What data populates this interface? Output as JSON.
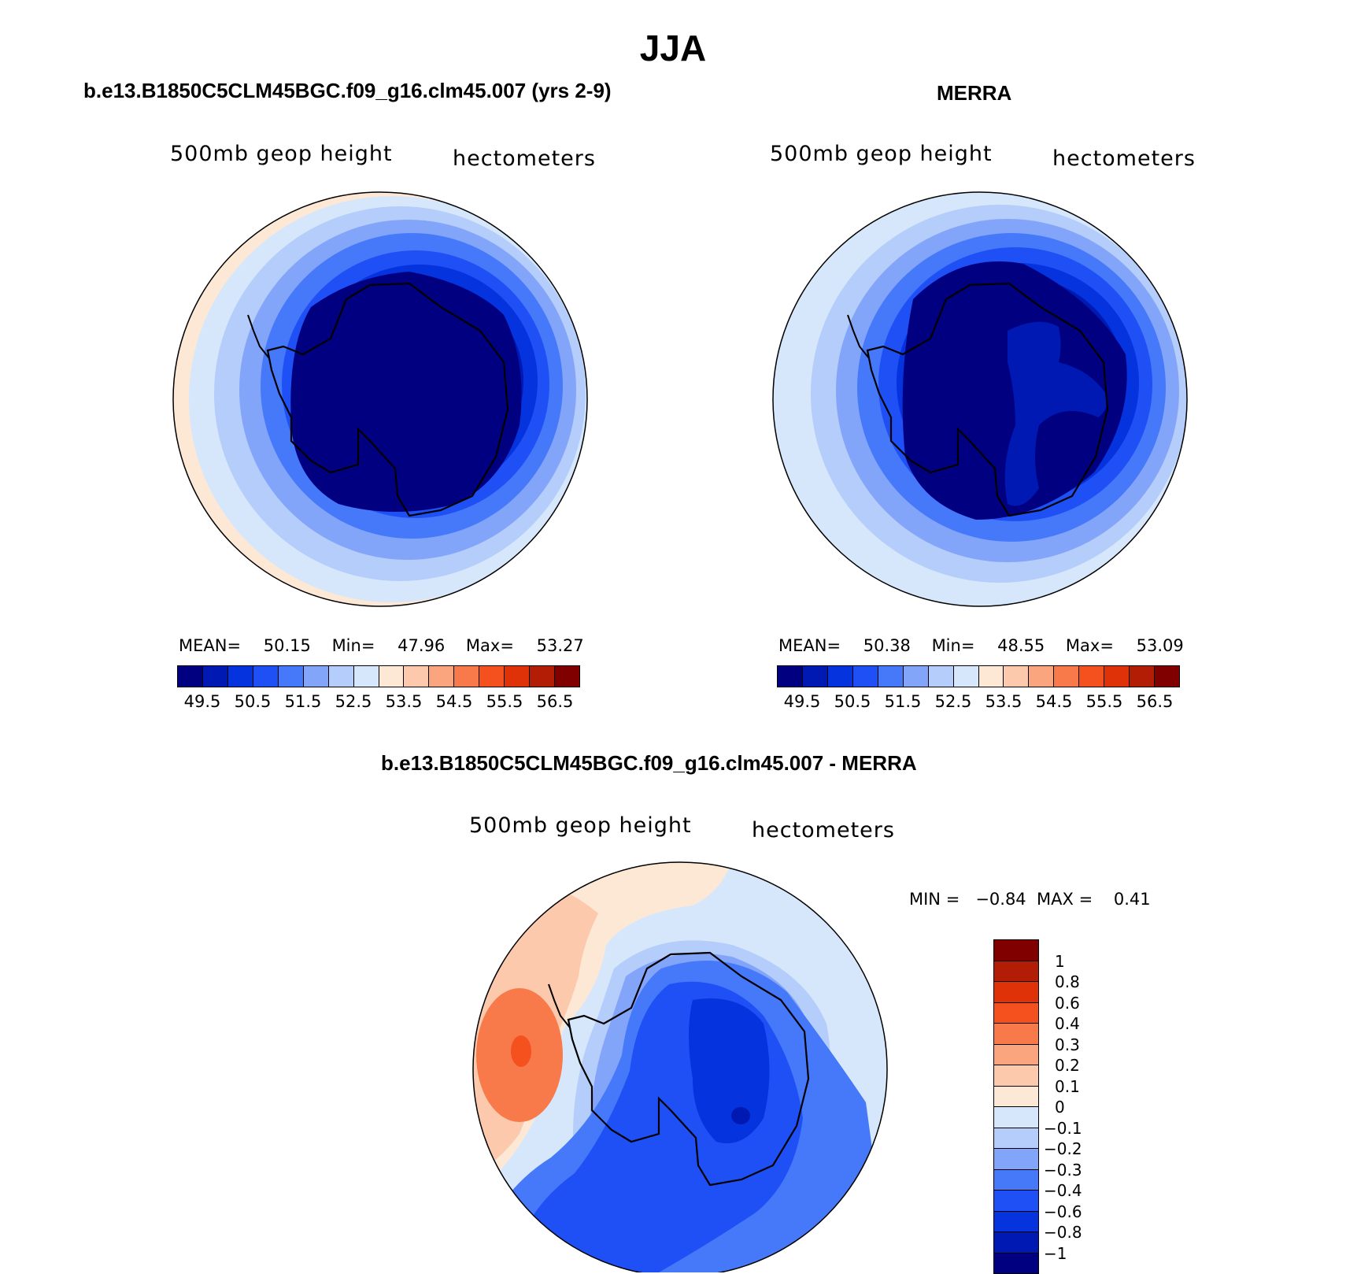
{
  "figure": {
    "title": "JJA"
  },
  "panels": {
    "model": {
      "title": "b.e13.B1850C5CLM45BGC.f09_g16.clm45.007 (yrs 2-9)",
      "variable": "500mb geop height",
      "units": "hectometers",
      "stats": {
        "mean_label": "MEAN=",
        "mean": "50.15",
        "min_label": "Min=",
        "min": "47.96",
        "max_label": "Max=",
        "max": "53.27"
      }
    },
    "obs": {
      "title": "MERRA",
      "variable": "500mb geop height",
      "units": "hectometers",
      "stats": {
        "mean_label": "MEAN=",
        "mean": "50.38",
        "min_label": "Min=",
        "min": "48.55",
        "max_label": "Max=",
        "max": "53.09"
      }
    },
    "diff": {
      "title": "b.e13.B1850C5CLM45BGC.f09_g16.clm45.007 - MERRA",
      "variable": "500mb geop height",
      "units": "hectometers",
      "stats_text": "MIN =   −0.84  MAX =    0.41"
    }
  },
  "colorbars": {
    "absolute": {
      "colors": [
        "#000080",
        "#0019b3",
        "#0533dd",
        "#1e50f5",
        "#4678fa",
        "#82a5fa",
        "#b4cdfa",
        "#d7e7fb",
        "#fde8d5",
        "#fcc9ad",
        "#fba57f",
        "#f87a4a",
        "#f5511e",
        "#e03209",
        "#b41d05",
        "#800000"
      ],
      "ticks": [
        "49.5",
        "50.5",
        "51.5",
        "52.5",
        "53.5",
        "54.5",
        "55.5",
        "56.5"
      ]
    },
    "difference": {
      "colors_top_to_bottom": [
        "#800000",
        "#b41d05",
        "#e03209",
        "#f5511e",
        "#f87a4a",
        "#fba57f",
        "#fcc9ad",
        "#fde8d5",
        "#d7e7fb",
        "#b4cdfa",
        "#82a5fa",
        "#4678fa",
        "#1e50f5",
        "#0533dd",
        "#0019b3",
        "#000080"
      ],
      "ticks": [
        "1",
        "0.8",
        "0.6",
        "0.4",
        "0.3",
        "0.2",
        "0.1",
        "0",
        "−0.1",
        "−0.2",
        "−0.3",
        "−0.4",
        "−0.6",
        "−0.8",
        "−1"
      ]
    }
  }
}
